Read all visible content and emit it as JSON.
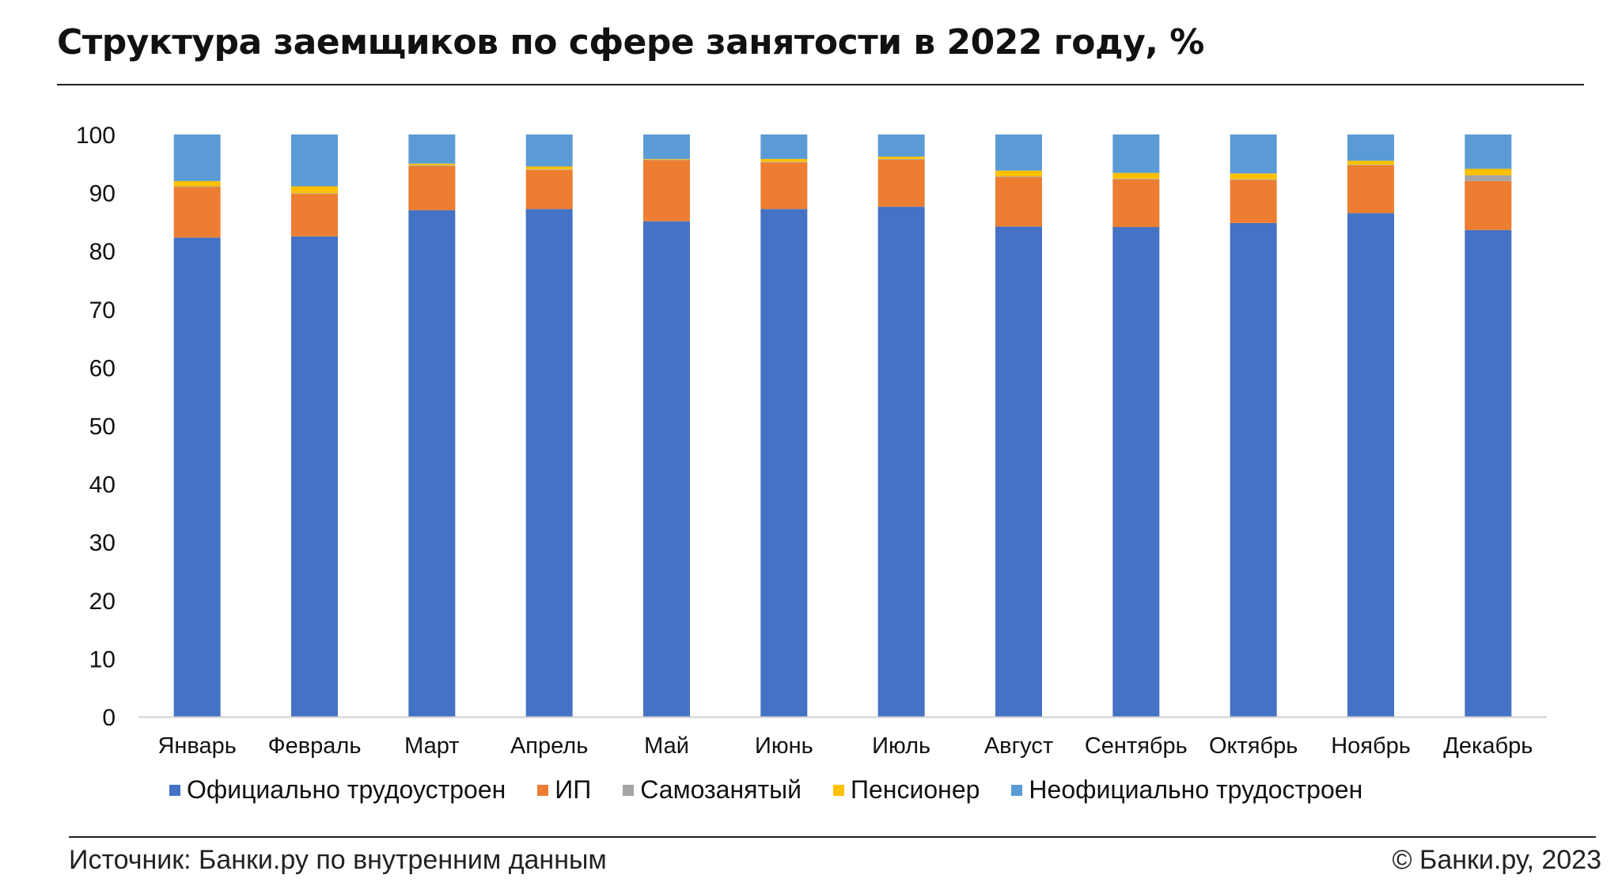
{
  "title": "Структура заемщиков по сфере занятости в 2022 году, %",
  "source": "Источник: Банки.ру по внутренним данным",
  "copyright": "© Банки.ру, 2023",
  "chart_data": {
    "type": "bar",
    "stacked": true,
    "categories": [
      "Январь",
      "Февраль",
      "Март",
      "Апрель",
      "Май",
      "Июнь",
      "Июль",
      "Август",
      "Сентябрь",
      "Октябрь",
      "Ноябрь",
      "Декабрь"
    ],
    "series": [
      {
        "name": "Официально трудоустроен",
        "color": "#4472C4",
        "values": [
          82.3,
          82.5,
          87.0,
          87.2,
          85.1,
          87.2,
          87.6,
          84.2,
          84.1,
          84.8,
          86.5,
          83.6
        ]
      },
      {
        "name": "ИП",
        "color": "#ED7D31",
        "values": [
          8.7,
          7.3,
          7.6,
          6.7,
          10.5,
          8.0,
          8.1,
          8.5,
          8.2,
          7.4,
          8.2,
          8.4
        ]
      },
      {
        "name": "Самозанятый",
        "color": "#A5A5A5",
        "values": [
          0.1,
          0.1,
          0.1,
          0.1,
          0.1,
          0.1,
          0.1,
          0.1,
          0.1,
          0.1,
          0.1,
          1.0
        ]
      },
      {
        "name": "Пенсионер",
        "color": "#FFC000",
        "values": [
          0.9,
          1.2,
          0.3,
          0.5,
          0.1,
          0.5,
          0.4,
          1.0,
          1.0,
          1.0,
          0.7,
          1.1
        ]
      },
      {
        "name": "Неофициально трудостроен",
        "color": "#5B9BD5",
        "values": [
          8.0,
          8.9,
          5.0,
          5.5,
          4.2,
          4.2,
          3.8,
          6.2,
          6.6,
          6.7,
          4.5,
          5.9
        ]
      }
    ],
    "ylim": [
      0,
      100
    ],
    "yticks": [
      0,
      10,
      20,
      30,
      40,
      50,
      60,
      70,
      80,
      90,
      100
    ],
    "xlabel": "",
    "ylabel": "",
    "grid": false,
    "legend": "bottom"
  }
}
